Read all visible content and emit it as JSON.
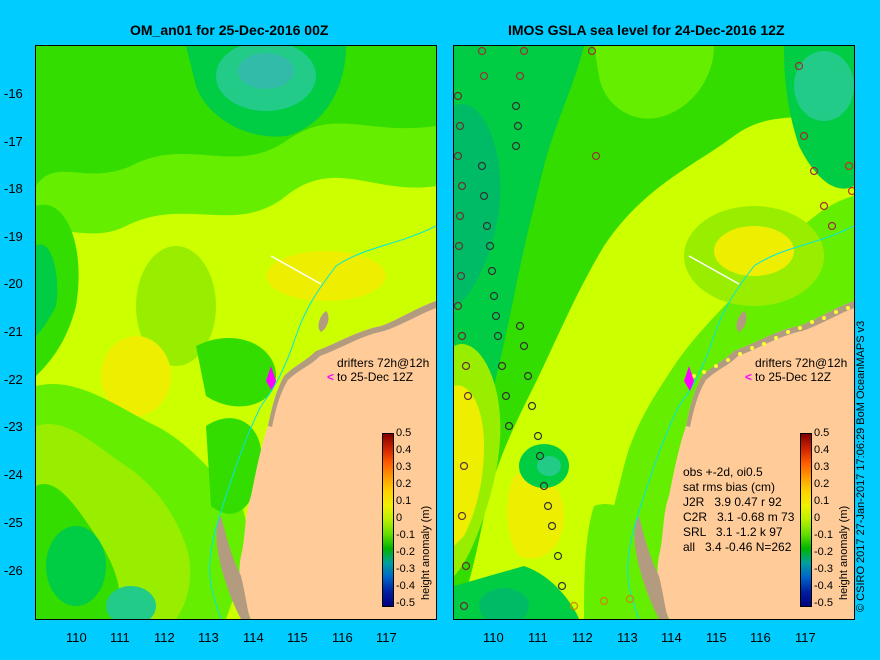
{
  "left_title": "OM_an01 for 25-Dec-2016 00Z",
  "right_title": "IMOS GSLA sea level  for 24-Dec-2016 12Z",
  "y_labels": [
    "-16",
    "-17",
    "-18",
    "-19",
    "-20",
    "-21",
    "-22",
    "-23",
    "-24",
    "-25",
    "-26"
  ],
  "x_labels": [
    "110",
    "111",
    "112",
    "113",
    "114",
    "115",
    "116",
    "117"
  ],
  "drifter_line1": "drifters 72h@12h",
  "drifter_line2": "to 25-Dec 12Z",
  "colorbar_ticks": [
    "0.5",
    "0.4",
    "0.3",
    "0.2",
    "0.1",
    "0",
    "-0.1",
    "-0.2",
    "-0.3",
    "-0.4",
    "-0.5"
  ],
  "colorbar_label": "height anomaly (m)",
  "stats": {
    "header1": "obs +-2d, oi0.5",
    "header2": "sat rms bias (cm)",
    "rows": [
      "J2R   3.9 0.47 r 92",
      "C2R   3.1 -0.68 m 73",
      "SRL   3.1 -1.2 k 97",
      "all   3.4 -0.46 N=262"
    ]
  },
  "credit": "© CSIRO 2017   27-Jan-2017 17:06:29 BoM OceanMAPS v3",
  "colors": {
    "background": "#00ccff",
    "land": "#ffcc99",
    "coast": "#b39b80",
    "drifter_arrow": "#ff00ff"
  }
}
